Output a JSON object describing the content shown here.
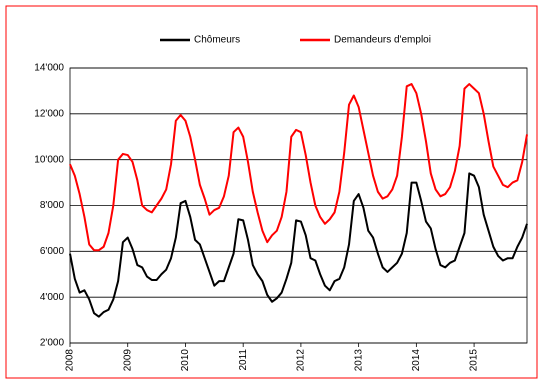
{
  "chart_data": {
    "type": "line",
    "categories": [
      "2008",
      null,
      null,
      null,
      null,
      null,
      null,
      null,
      null,
      null,
      null,
      null,
      "2009",
      null,
      null,
      null,
      null,
      null,
      null,
      null,
      null,
      null,
      null,
      null,
      "2010",
      null,
      null,
      null,
      null,
      null,
      null,
      null,
      null,
      null,
      null,
      null,
      "2011",
      null,
      null,
      null,
      null,
      null,
      null,
      null,
      null,
      null,
      null,
      null,
      "2012",
      null,
      null,
      null,
      null,
      null,
      null,
      null,
      null,
      null,
      null,
      null,
      "2013",
      null,
      null,
      null,
      null,
      null,
      null,
      null,
      null,
      null,
      null,
      null,
      "2014",
      null,
      null,
      null,
      null,
      null,
      null,
      null,
      null,
      null,
      null,
      null,
      "2015",
      null,
      null,
      null,
      null,
      null,
      null,
      null,
      null,
      null,
      null,
      null
    ],
    "series": [
      {
        "name": "Chômeurs",
        "color": "#000000",
        "values": [
          5900,
          4800,
          4200,
          4300,
          3900,
          3300,
          3150,
          3350,
          3450,
          3900,
          4700,
          6400,
          6600,
          6100,
          5400,
          5300,
          4900,
          4750,
          4750,
          5000,
          5200,
          5700,
          6600,
          8100,
          8200,
          7500,
          6500,
          6300,
          5700,
          5100,
          4500,
          4700,
          4700,
          5300,
          5900,
          7400,
          7350,
          6500,
          5400,
          5000,
          4700,
          4100,
          3800,
          3950,
          4200,
          4800,
          5500,
          7350,
          7300,
          6700,
          5700,
          5600,
          5000,
          4500,
          4300,
          4700,
          4800,
          5300,
          6300,
          8200,
          8500,
          7900,
          6900,
          6600,
          5900,
          5300,
          5100,
          5300,
          5500,
          5900,
          6800,
          9000,
          9000,
          8200,
          7300,
          7000,
          6100,
          5400,
          5300,
          5500,
          5600,
          6200,
          6800,
          9400,
          9300,
          8800,
          7600,
          6900,
          6200,
          5800,
          5600,
          5700,
          5700,
          6200,
          6600,
          7200
        ]
      },
      {
        "name": "Demandeurs d'emploi",
        "color": "#ff0000",
        "values": [
          9800,
          9300,
          8500,
          7500,
          6300,
          6050,
          6050,
          6200,
          6800,
          8000,
          10000,
          10250,
          10200,
          9900,
          9100,
          8000,
          7800,
          7700,
          8000,
          8300,
          8700,
          9800,
          11700,
          11950,
          11700,
          11000,
          10000,
          8900,
          8300,
          7600,
          7800,
          7900,
          8400,
          9300,
          11200,
          11400,
          11000,
          9900,
          8600,
          7700,
          6900,
          6400,
          6700,
          6900,
          7500,
          8600,
          11000,
          11300,
          11200,
          10200,
          9000,
          8000,
          7500,
          7200,
          7400,
          7700,
          8600,
          10300,
          12400,
          12800,
          12300,
          11300,
          10300,
          9300,
          8600,
          8300,
          8400,
          8700,
          9300,
          11000,
          13200,
          13300,
          12900,
          12000,
          10800,
          9400,
          8700,
          8400,
          8500,
          8800,
          9500,
          10600,
          13100,
          13300,
          13100,
          12900,
          12000,
          10800,
          9700,
          9300,
          8900,
          8800,
          9000,
          9100,
          9900,
          11100
        ]
      }
    ],
    "ylim": [
      2000,
      14000
    ],
    "yticks": [
      {
        "value": 2000,
        "label": "2'000"
      },
      {
        "value": 4000,
        "label": "4'000"
      },
      {
        "value": 6000,
        "label": "6'000"
      },
      {
        "value": 8000,
        "label": "8'000"
      },
      {
        "value": 10000,
        "label": "10'000"
      },
      {
        "value": 12000,
        "label": "12'000"
      },
      {
        "value": 14000,
        "label": "14'000"
      }
    ],
    "grid": true
  }
}
